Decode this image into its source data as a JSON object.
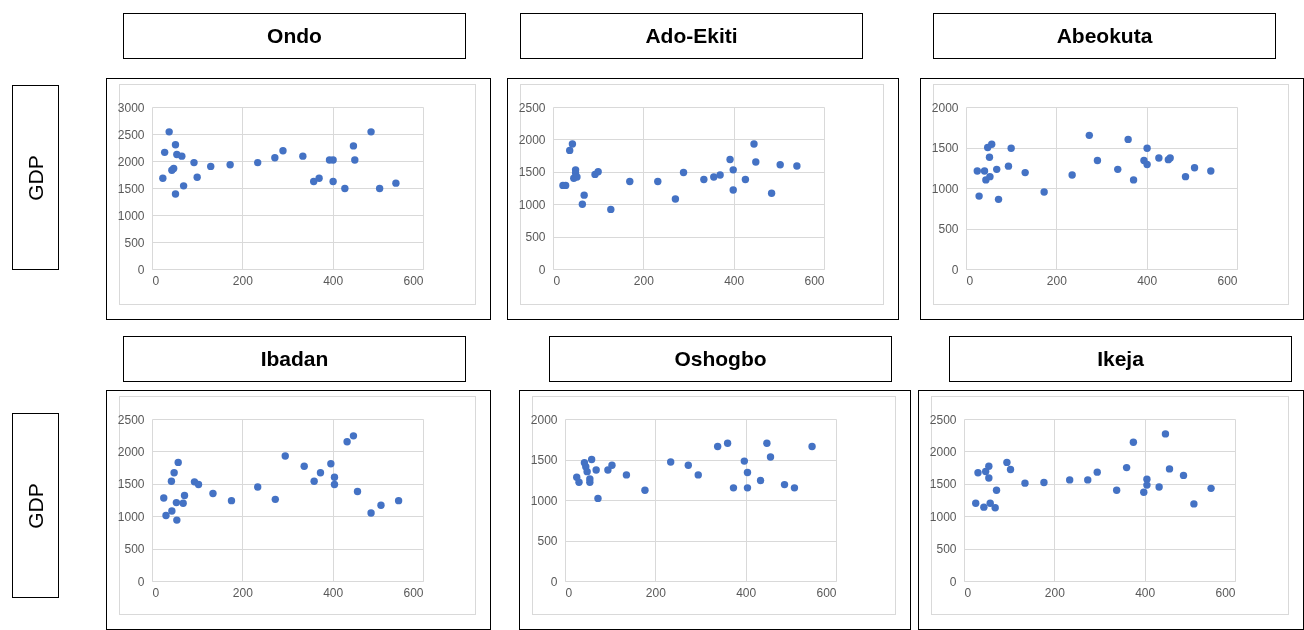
{
  "chart_data": [
    {
      "type": "scatter",
      "title": "Ondo",
      "ylabel": "GDP",
      "color": "#4472c4",
      "marker": "circle",
      "grid": true,
      "xlim": [
        0,
        600
      ],
      "xticks": [
        0,
        200,
        400,
        600
      ],
      "ylim": [
        0,
        3000
      ],
      "yticks": [
        0,
        500,
        1000,
        1500,
        2000,
        2500,
        3000
      ],
      "x": [
        24,
        28,
        38,
        44,
        48,
        52,
        52,
        55,
        66,
        70,
        93,
        100,
        130,
        173,
        234,
        272,
        290,
        334,
        358,
        370,
        393,
        401,
        401,
        427,
        446,
        449,
        485,
        504,
        540
      ],
      "values": [
        1680,
        2160,
        2540,
        1830,
        1860,
        2300,
        1390,
        2120,
        2090,
        1540,
        1970,
        1700,
        1900,
        1930,
        1970,
        2060,
        2190,
        2090,
        1620,
        1680,
        2020,
        2020,
        1620,
        1490,
        2280,
        2020,
        2540,
        1490,
        1590
      ]
    },
    {
      "type": "scatter",
      "title": "Ado-Ekiti",
      "color": "#4472c4",
      "marker": "circle",
      "grid": true,
      "xlim": [
        0,
        600
      ],
      "xticks": [
        0,
        200,
        400,
        600
      ],
      "ylim": [
        0,
        2500
      ],
      "yticks": [
        0,
        500,
        1000,
        1500,
        2000,
        2500
      ],
      "x": [
        22,
        28,
        37,
        43,
        46,
        50,
        50,
        53,
        65,
        69,
        93,
        100,
        128,
        170,
        232,
        271,
        289,
        334,
        356,
        370,
        392,
        399,
        399,
        426,
        445,
        449,
        484,
        503,
        540
      ],
      "values": [
        1290,
        1290,
        1830,
        1930,
        1400,
        1530,
        1480,
        1420,
        1000,
        1140,
        1460,
        1500,
        920,
        1350,
        1350,
        1080,
        1490,
        1380,
        1420,
        1450,
        1690,
        1530,
        1220,
        1380,
        1930,
        1650,
        1170,
        1610,
        1590
      ]
    },
    {
      "type": "scatter",
      "title": "Abeokuta",
      "color": "#4472c4",
      "marker": "circle",
      "grid": true,
      "xlim": [
        0,
        600
      ],
      "xticks": [
        0,
        200,
        400,
        600
      ],
      "ylim": [
        0,
        2000
      ],
      "yticks": [
        0,
        500,
        1000,
        1500,
        2000
      ],
      "x": [
        25,
        29,
        41,
        44,
        48,
        53,
        57,
        52,
        68,
        72,
        94,
        100,
        131,
        173,
        235,
        273,
        291,
        336,
        359,
        371,
        394,
        401,
        401,
        427,
        448,
        452,
        486,
        506,
        542
      ],
      "values": [
        1210,
        900,
        1210,
        1100,
        1500,
        1140,
        1540,
        1380,
        1230,
        860,
        1270,
        1490,
        1190,
        950,
        1160,
        1650,
        1340,
        1230,
        1600,
        1100,
        1340,
        1290,
        1490,
        1370,
        1350,
        1370,
        1140,
        1250,
        1210
      ]
    },
    {
      "type": "scatter",
      "title": "Ibadan",
      "ylabel": "GDP",
      "color": "#4472c4",
      "marker": "circle",
      "grid": true,
      "xlim": [
        0,
        600
      ],
      "xticks": [
        0,
        200,
        400,
        600
      ],
      "ylim": [
        0,
        2500
      ],
      "yticks": [
        0,
        500,
        1000,
        1500,
        2000,
        2500
      ],
      "x": [
        26,
        31,
        44,
        43,
        49,
        54,
        55,
        58,
        69,
        72,
        94,
        103,
        135,
        176,
        234,
        273,
        295,
        337,
        359,
        373,
        396,
        404,
        404,
        432,
        446,
        455,
        485,
        507,
        546
      ],
      "values": [
        1280,
        1010,
        1080,
        1540,
        1670,
        1210,
        940,
        1830,
        1200,
        1320,
        1530,
        1490,
        1350,
        1240,
        1450,
        1260,
        1930,
        1770,
        1540,
        1670,
        1810,
        1600,
        1490,
        2150,
        2240,
        1380,
        1050,
        1170,
        1240
      ]
    },
    {
      "type": "scatter",
      "title": "Oshogbo",
      "color": "#4472c4",
      "marker": "circle",
      "grid": true,
      "xlim": [
        0,
        600
      ],
      "xticks": [
        0,
        200,
        400,
        600
      ],
      "ylim": [
        0,
        2000
      ],
      "yticks": [
        0,
        500,
        1000,
        1500,
        2000
      ],
      "x": [
        26,
        31,
        43,
        46,
        49,
        55,
        55,
        59,
        69,
        73,
        95,
        104,
        136,
        177,
        234,
        273,
        295,
        338,
        360,
        373,
        397,
        404,
        404,
        433,
        447,
        455,
        486,
        508,
        547
      ],
      "values": [
        1280,
        1220,
        1460,
        1410,
        1350,
        1260,
        1220,
        1500,
        1370,
        1020,
        1370,
        1430,
        1310,
        1120,
        1470,
        1430,
        1310,
        1660,
        1700,
        1150,
        1480,
        1340,
        1150,
        1240,
        1700,
        1530,
        1190,
        1150,
        1660
      ]
    },
    {
      "type": "scatter",
      "title": "Ikeja",
      "color": "#4472c4",
      "marker": "circle",
      "grid": true,
      "xlim": [
        0,
        600
      ],
      "xticks": [
        0,
        200,
        400,
        600
      ],
      "ylim": [
        0,
        2500
      ],
      "yticks": [
        0,
        500,
        1000,
        1500,
        2000,
        2500
      ],
      "x": [
        26,
        31,
        44,
        48,
        55,
        55,
        58,
        69,
        72,
        95,
        103,
        135,
        177,
        234,
        274,
        295,
        338,
        360,
        375,
        398,
        405,
        405,
        432,
        446,
        455,
        486,
        509,
        547
      ],
      "values": [
        1200,
        1670,
        1140,
        1690,
        1770,
        1590,
        1200,
        1130,
        1400,
        1830,
        1720,
        1510,
        1520,
        1560,
        1560,
        1680,
        1400,
        1750,
        2140,
        1370,
        1570,
        1480,
        1450,
        2270,
        1730,
        1630,
        1190,
        1430
      ]
    }
  ]
}
